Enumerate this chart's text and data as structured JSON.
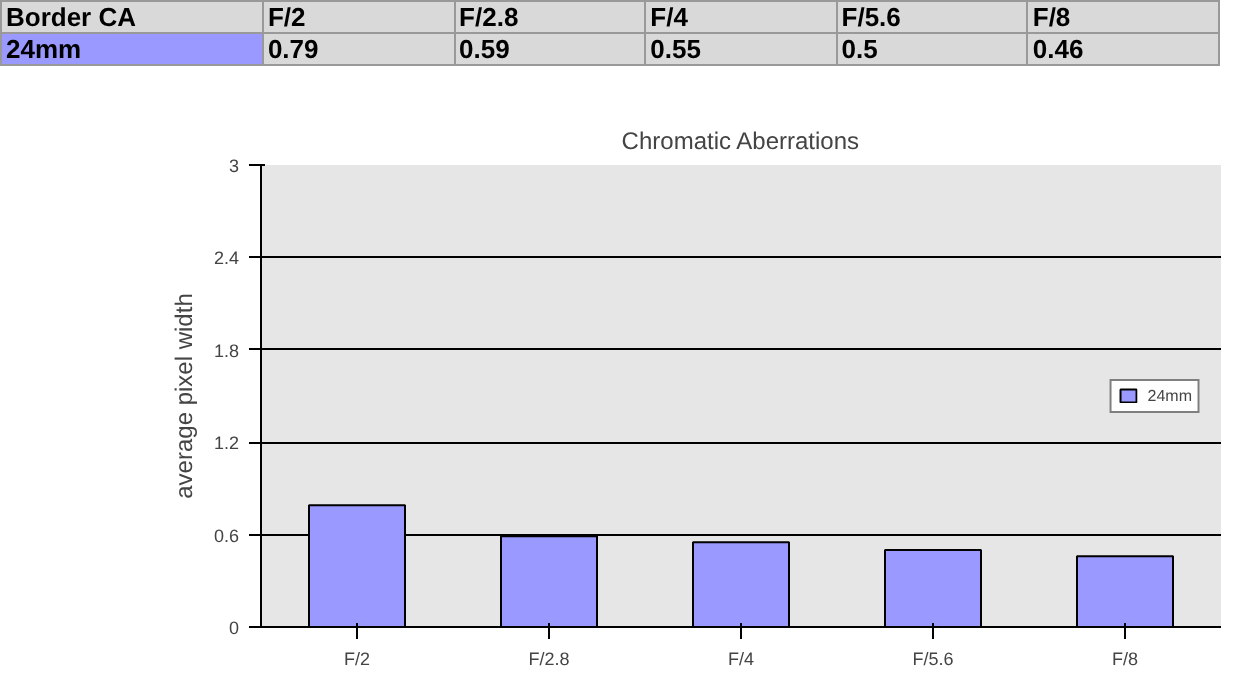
{
  "chart_data": {
    "type": "bar",
    "title": "Chromatic Aberrations",
    "ylabel": "average pixel width",
    "annotations": [
      "Border CA"
    ],
    "categories": [
      "F/2",
      "F/2.8",
      "F/4",
      "F/5.6",
      "F/8"
    ],
    "series": [
      {
        "name": "24mm",
        "color": "#9999ff",
        "values": [
          0.79,
          0.59,
          0.55,
          0.5,
          0.46
        ]
      }
    ],
    "ylim": [
      0,
      3
    ],
    "yticks": [
      0,
      0.6,
      1.2,
      1.8,
      2.4,
      3
    ],
    "grid": "y",
    "legend": "right",
    "data_labels": true
  }
}
